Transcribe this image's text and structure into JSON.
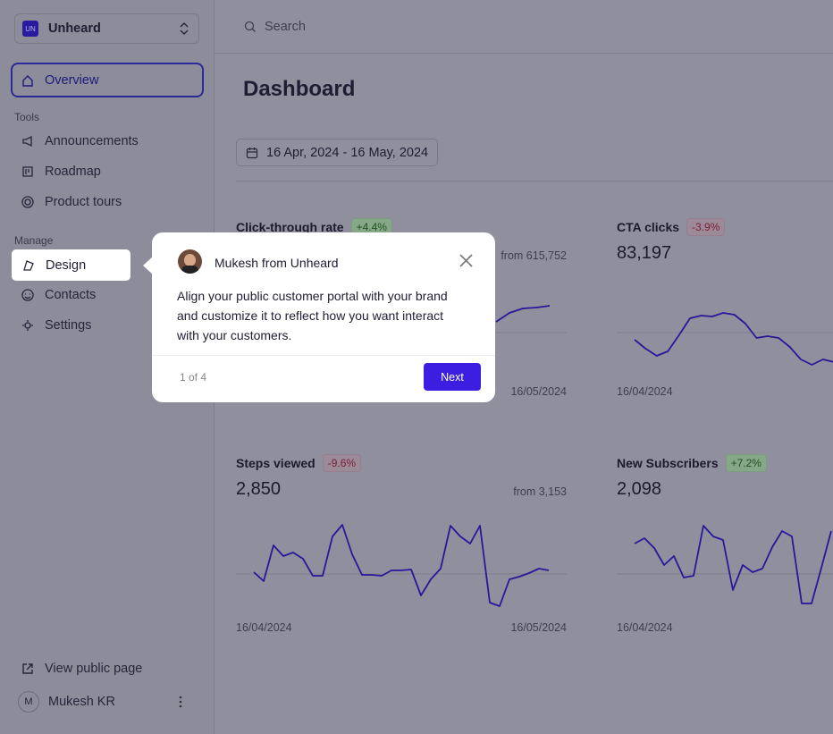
{
  "workspace": {
    "logo": "UN",
    "name": "Unheard"
  },
  "nav": {
    "overview": "Overview",
    "tools_heading": "Tools",
    "tools": [
      "Announcements",
      "Roadmap",
      "Product tours"
    ],
    "manage_heading": "Manage",
    "manage": [
      "Design",
      "Contacts",
      "Settings"
    ],
    "public_page": "View public page",
    "user": {
      "initial": "M",
      "name": "Mukesh KR"
    }
  },
  "search": {
    "placeholder": "Search"
  },
  "page": {
    "title": "Dashboard",
    "date_range": "16 Apr, 2024 - 16 May, 2024"
  },
  "cards": [
    {
      "title": "Click-through rate",
      "change": "+4.4%",
      "comparison": "from 615,752",
      "end_date": "16/05/2024",
      "trend": [
        55,
        65,
        70,
        71,
        73
      ]
    },
    {
      "title": "CTA clicks",
      "change": "-3.9%",
      "value": "83,197",
      "start_date": "16/04/2024",
      "trend": [
        35,
        25,
        17,
        22,
        40,
        59,
        62,
        61,
        65,
        63,
        53,
        37,
        39,
        37,
        27,
        13,
        7,
        13,
        10
      ]
    },
    {
      "title": "Steps viewed",
      "change": "-9.6%",
      "value": "2,850",
      "comparison": "from 3,153",
      "start_date": "16/04/2024",
      "end_date": "16/05/2024",
      "trend": [
        45,
        35,
        75,
        63,
        67,
        60,
        41,
        41,
        85,
        98,
        65,
        42,
        42,
        41,
        47,
        47,
        48,
        19,
        37,
        49,
        97,
        85,
        77,
        97,
        11,
        7,
        37,
        40,
        44,
        49,
        47
      ]
    },
    {
      "title": "New Subscribers",
      "change": "+7.2%",
      "value": "2,098",
      "start_date": "16/04/2024",
      "trend": [
        77,
        83,
        72,
        53,
        63,
        39,
        41,
        97,
        85,
        81,
        25,
        53,
        45,
        49,
        73,
        91,
        85,
        10,
        10,
        50,
        91
      ]
    }
  ],
  "tour": {
    "sender": "Mukesh from Unheard",
    "body": [
      "Align your public customer portal with your brand",
      "and customize it to reflect how you want interact",
      "with your customers."
    ],
    "progress": "1 of 4",
    "next": "Next"
  }
}
